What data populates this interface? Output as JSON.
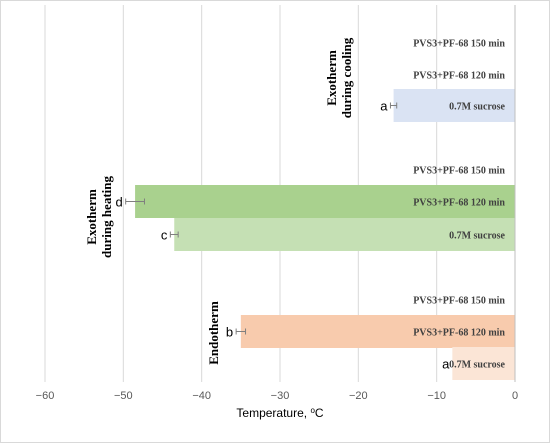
{
  "chart_data": {
    "type": "bar",
    "orientation": "horizontal",
    "xlabel": "Temperature, ",
    "xlabel_unit": "C",
    "xlabel_degree": "o",
    "xlim": [
      -60,
      0
    ],
    "x_ticks": [
      "−60",
      "−50",
      "−40",
      "−30",
      "−20",
      "−10",
      "0"
    ],
    "grid": true,
    "colors": {
      "cooling": "#dae3f3",
      "heating_dark": "#a9d18e",
      "heating_light": "#c5e0b4",
      "endotherm": "#f8cbad",
      "endotherm_light": "#fbe5d6"
    },
    "groups": [
      {
        "label_line1": "Exotherm",
        "label_line2": "during cooling",
        "bars": [
          {
            "category": "PVS3+PF-68 150 min",
            "value": null,
            "letter": ""
          },
          {
            "category": "PVS3+PF-68 120 min",
            "value": null,
            "letter": ""
          },
          {
            "category": "0.7M sucrose",
            "value": -15.5,
            "error": 0.4,
            "letter": "a",
            "color": "#dae3f3"
          }
        ]
      },
      {
        "label_line1": "Exotherm",
        "label_line2": "during heating",
        "bars": [
          {
            "category": "PVS3+PF-68 150 min",
            "value": null,
            "letter": ""
          },
          {
            "category": "PVS3+PF-68 120 min",
            "value": -48.5,
            "error": 1.2,
            "letter": "d",
            "color": "#a9d18e"
          },
          {
            "category": "0.7M sucrose",
            "value": -43.5,
            "error": 0.5,
            "letter": "c",
            "color": "#c5e0b4"
          }
        ]
      },
      {
        "label_line1": "Endotherm",
        "label_line2": "",
        "bars": [
          {
            "category": "PVS3+PF-68 150 min",
            "value": null,
            "letter": ""
          },
          {
            "category": "PVS3+PF-68 120 min",
            "value": -35,
            "error": 0.6,
            "letter": "b",
            "color": "#f8cbad"
          },
          {
            "category": "0.7M sucrose",
            "value": -8,
            "error": 0,
            "letter": "a",
            "color": "#fbe5d6"
          }
        ]
      }
    ]
  }
}
